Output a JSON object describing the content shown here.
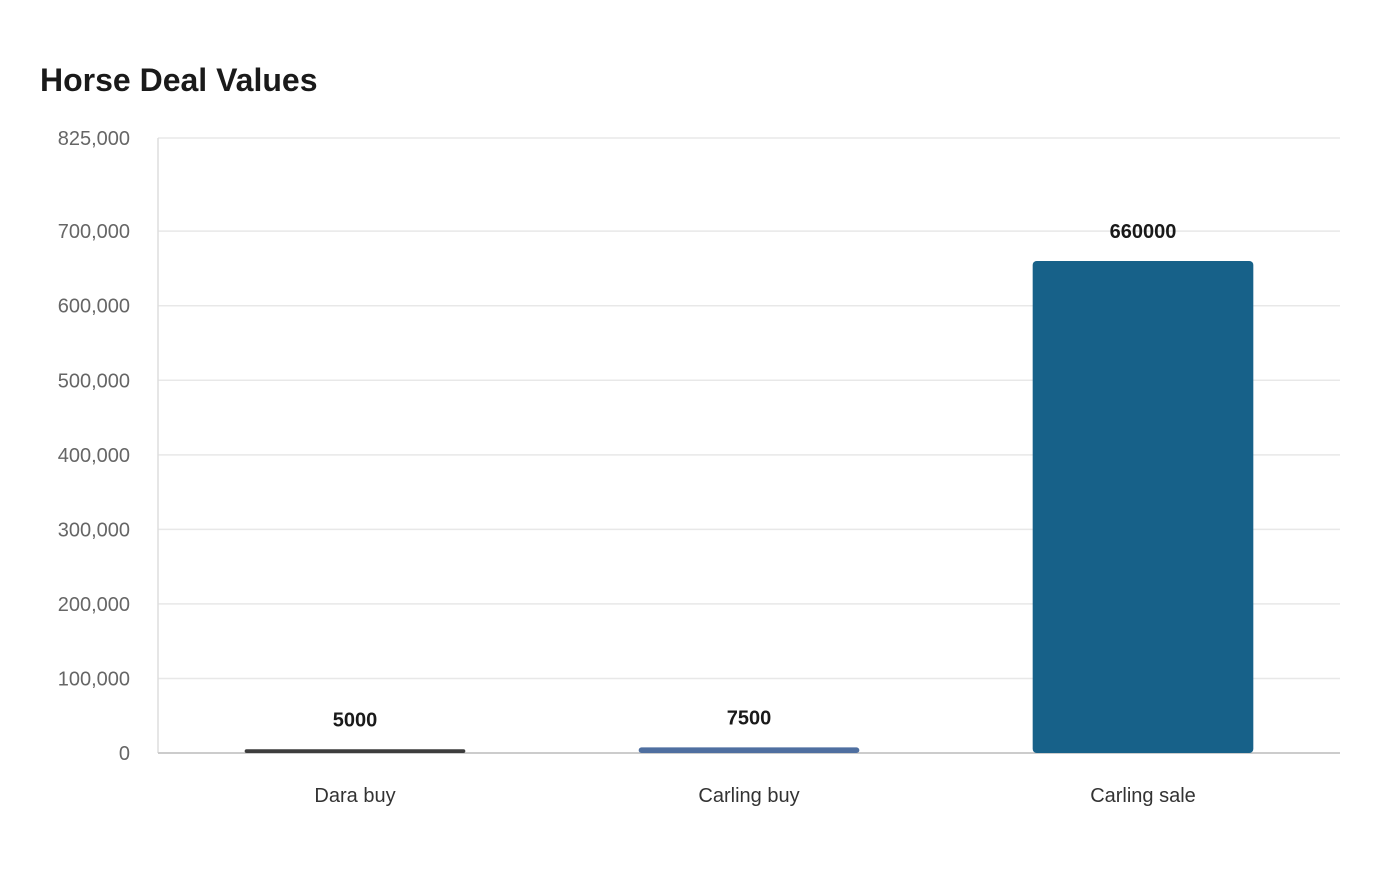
{
  "chart_data": {
    "type": "bar",
    "title": "Horse Deal Values",
    "xlabel": "",
    "ylabel": "",
    "categories": [
      "Dara buy",
      "Carling buy",
      "Carling sale"
    ],
    "values": [
      5000,
      7500,
      660000
    ],
    "data_labels": [
      "5000",
      "7500",
      "660000"
    ],
    "bar_colors": [
      "#3d3d3d",
      "#4f6fa0",
      "#176189"
    ],
    "ylim": [
      0,
      825000
    ],
    "yticks": [
      0,
      100000,
      200000,
      300000,
      400000,
      500000,
      600000,
      700000,
      825000
    ],
    "ytick_labels": [
      "0",
      "100,000",
      "200,000",
      "300,000",
      "400,000",
      "500,000",
      "600,000",
      "700,000",
      "825,000"
    ],
    "grid": true,
    "legend": "none"
  }
}
